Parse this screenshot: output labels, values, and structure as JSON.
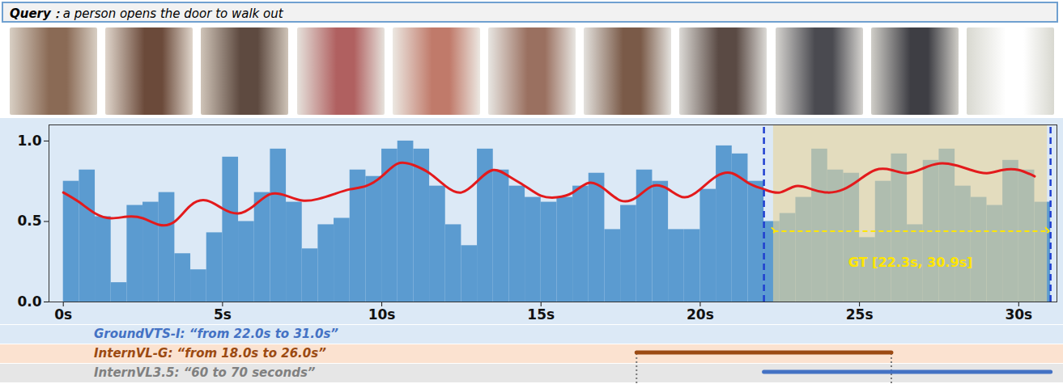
{
  "query": {
    "label": "Query：",
    "text": "a person opens the door to walk out"
  },
  "chart_data": {
    "type": "histogram",
    "bins": [
      0,
      0.5,
      1,
      1.5,
      2,
      2.5,
      3,
      3.5,
      4,
      4.5,
      5,
      5.5,
      6,
      6.5,
      7,
      7.5,
      8,
      8.5,
      9,
      9.5,
      10,
      10.5,
      11,
      11.5,
      12,
      12.5,
      13,
      13.5,
      14,
      14.5,
      15,
      15.5,
      16,
      16.5,
      17,
      17.5,
      18,
      18.5,
      19,
      19.5,
      20,
      20.5,
      21,
      21.5,
      22,
      22.5,
      23,
      23.5,
      24,
      24.5,
      25,
      25.5,
      26,
      26.5,
      27,
      27.5,
      28,
      28.5,
      29,
      29.5,
      30,
      30.5,
      31
    ],
    "values": [
      0.75,
      0.82,
      0.53,
      0.12,
      0.6,
      0.62,
      0.68,
      0.3,
      0.2,
      0.43,
      0.9,
      0.5,
      0.68,
      0.95,
      0.62,
      0.33,
      0.48,
      0.52,
      0.82,
      0.78,
      0.95,
      1.0,
      0.95,
      0.72,
      0.48,
      0.35,
      0.95,
      0.82,
      0.72,
      0.65,
      0.62,
      0.65,
      0.72,
      0.8,
      0.45,
      0.6,
      0.82,
      0.75,
      0.45,
      0.45,
      0.7,
      0.97,
      0.92,
      0.75,
      0.5,
      0.55,
      0.65,
      0.95,
      0.82,
      0.8,
      0.4,
      0.75,
      0.92,
      0.48,
      0.88,
      0.95,
      0.72,
      0.65,
      0.6,
      0.88,
      0.82,
      0.62
    ],
    "color": "#5b9bd0",
    "curve": {
      "color": "#e31a1c",
      "x": [
        0,
        0.5,
        1,
        1.5,
        2,
        2.5,
        3,
        3.5,
        4,
        4.5,
        5,
        5.5,
        6,
        6.5,
        7,
        7.5,
        8,
        8.5,
        9,
        9.5,
        10,
        10.5,
        11,
        11.5,
        12,
        12.5,
        13,
        13.5,
        14,
        14.5,
        15,
        15.5,
        16,
        16.5,
        17,
        17.5,
        18,
        18.5,
        19,
        19.5,
        20,
        20.5,
        21,
        21.5,
        22,
        22.5,
        23,
        23.5,
        24,
        24.5,
        25,
        25.5,
        26,
        26.5,
        27,
        27.5,
        28,
        28.5,
        29,
        29.5,
        30,
        30.5
      ],
      "values": [
        0.68,
        0.62,
        0.55,
        0.52,
        0.53,
        0.52,
        0.48,
        0.5,
        0.6,
        0.63,
        0.58,
        0.55,
        0.6,
        0.67,
        0.66,
        0.63,
        0.64,
        0.67,
        0.7,
        0.72,
        0.78,
        0.86,
        0.85,
        0.8,
        0.72,
        0.68,
        0.75,
        0.82,
        0.78,
        0.72,
        0.66,
        0.65,
        0.68,
        0.74,
        0.7,
        0.63,
        0.65,
        0.72,
        0.7,
        0.65,
        0.7,
        0.78,
        0.8,
        0.74,
        0.7,
        0.68,
        0.72,
        0.7,
        0.68,
        0.7,
        0.76,
        0.82,
        0.82,
        0.8,
        0.83,
        0.86,
        0.85,
        0.82,
        0.8,
        0.82,
        0.82,
        0.78
      ]
    },
    "ground_truth": {
      "interval": [
        22.3,
        30.9
      ],
      "label": "GT [22.3s, 30.9s]",
      "color": "#ffe600"
    },
    "xlim": [
      -0.45,
      31.2
    ],
    "ylim": [
      0,
      1.1
    ],
    "xticks": [
      {
        "value": 0,
        "label": "0s"
      },
      {
        "value": 5,
        "label": "5s"
      },
      {
        "value": 10,
        "label": "10s"
      },
      {
        "value": 15,
        "label": "15s"
      },
      {
        "value": 20,
        "label": "20s"
      },
      {
        "value": 25,
        "label": "25s"
      },
      {
        "value": 30,
        "label": "30s"
      }
    ],
    "yticks": [
      {
        "value": 0,
        "label": "0.0"
      },
      {
        "value": 0.5,
        "label": "0.5"
      },
      {
        "value": 1,
        "label": "1.0"
      }
    ]
  },
  "predictions": [
    {
      "label": "GroundVTS-I: “from 22.0s to 31.0s”",
      "interval": [
        22.0,
        31.0
      ],
      "color": "#4472c4"
    },
    {
      "label": "InternVL-G: “from 18.0s to 26.0s”",
      "interval": [
        18.0,
        26.0
      ],
      "color": "#9c4a12"
    },
    {
      "label": "InternVL3.5: “60 to 70 seconds”",
      "interval": null,
      "color": "#808080"
    }
  ]
}
